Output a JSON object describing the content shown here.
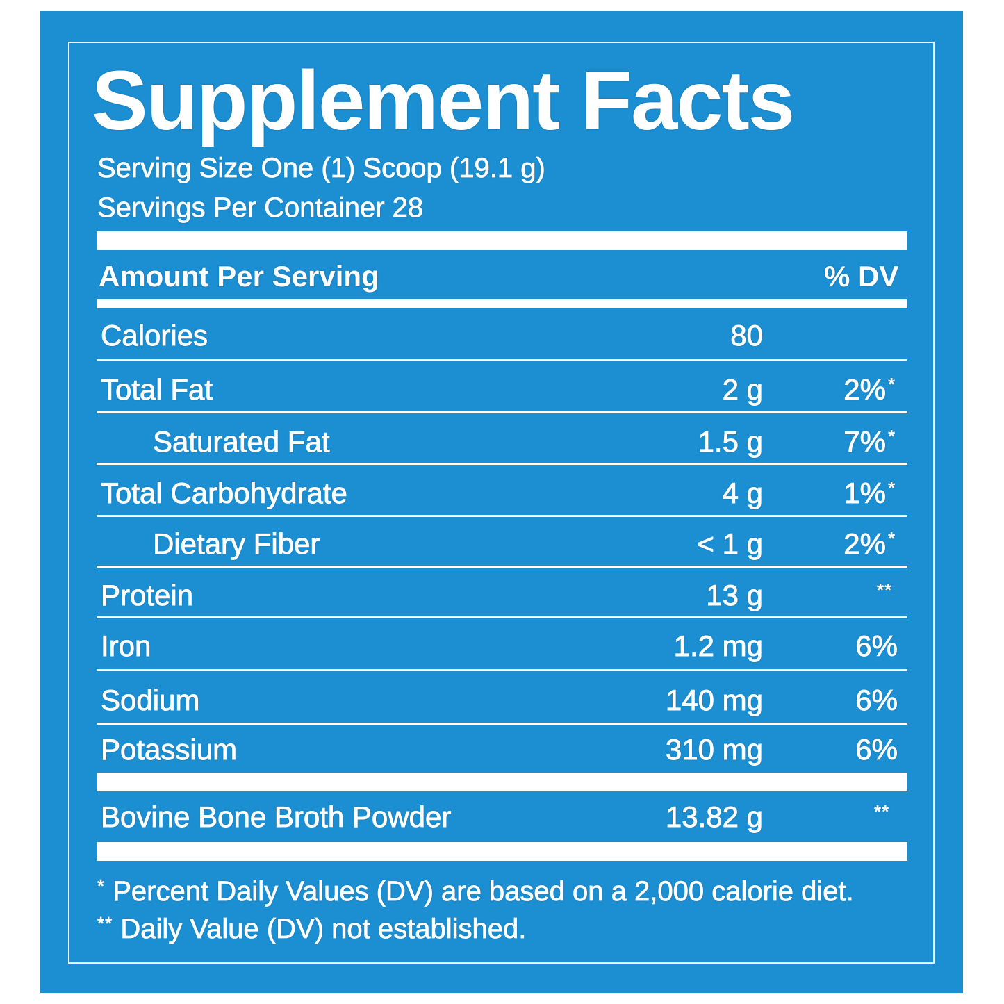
{
  "label": {
    "title": "Supplement Facts",
    "serving_size": "Serving Size One (1) Scoop (19.1 g)",
    "servings_per_container": "Servings Per Container 28",
    "header_amount": "Amount Per Serving",
    "header_dv": "% DV"
  },
  "rows": [
    {
      "label": "Calories",
      "amount": "80",
      "dv": "",
      "mark": ""
    },
    {
      "label": "Total Fat",
      "amount": "2 g",
      "dv": "2%",
      "mark": "*"
    },
    {
      "label": "Saturated Fat",
      "amount": "1.5 g",
      "dv": "7%",
      "mark": "*"
    },
    {
      "label": "Total Carbohydrate",
      "amount": "4 g",
      "dv": "1%",
      "mark": "*"
    },
    {
      "label": "Dietary Fiber",
      "amount": "< 1 g",
      "dv": "2%",
      "mark": "*"
    },
    {
      "label": "Protein",
      "amount": "13 g",
      "dv": "",
      "mark": "**"
    },
    {
      "label": "Iron",
      "amount": "1.2 mg",
      "dv": "6%",
      "mark": ""
    },
    {
      "label": "Sodium",
      "amount": "140 mg",
      "dv": "6%",
      "mark": ""
    },
    {
      "label": "Potassium",
      "amount": "310 mg",
      "dv": "6%",
      "mark": ""
    },
    {
      "label": "Bovine Bone Broth Powder",
      "amount": "13.82 g",
      "dv": "",
      "mark": "**"
    }
  ],
  "footnotes": {
    "one_mark": "*",
    "one_text": "Percent Daily Values (DV) are based on a 2,000 calorie diet.",
    "two_mark": "**",
    "two_text": "Daily Value (DV) not established."
  },
  "colors": {
    "panel_blue": "#1b8fd2",
    "text": "#ffffff"
  }
}
